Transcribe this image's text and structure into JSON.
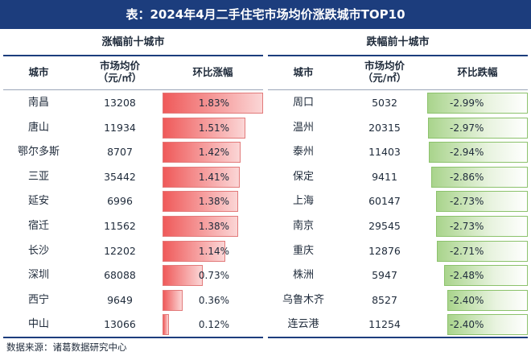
{
  "title": "表：2024年4月二手住宅市场均价涨跌城市TOP10",
  "left": {
    "section_title": "涨幅前十城市",
    "headers": {
      "city": "城市",
      "price": "市场均价\n（元/㎡）",
      "change": "环比涨幅"
    },
    "rows": [
      {
        "city": "南昌",
        "price": "13208",
        "change": "1.83%",
        "value": 1.83
      },
      {
        "city": "唐山",
        "price": "11934",
        "change": "1.51%",
        "value": 1.51
      },
      {
        "city": "鄂尔多斯",
        "price": "8707",
        "change": "1.42%",
        "value": 1.42
      },
      {
        "city": "三亚",
        "price": "35442",
        "change": "1.41%",
        "value": 1.41
      },
      {
        "city": "延安",
        "price": "6996",
        "change": "1.38%",
        "value": 1.38
      },
      {
        "city": "宿迁",
        "price": "11562",
        "change": "1.38%",
        "value": 1.38
      },
      {
        "city": "长沙",
        "price": "12202",
        "change": "1.14%",
        "value": 1.14
      },
      {
        "city": "深圳",
        "price": "68088",
        "change": "0.73%",
        "value": 0.73
      },
      {
        "city": "西宁",
        "price": "9649",
        "change": "0.36%",
        "value": 0.36
      },
      {
        "city": "中山",
        "price": "13066",
        "change": "0.12%",
        "value": 0.12
      }
    ]
  },
  "right": {
    "section_title": "跌幅前十城市",
    "headers": {
      "city": "城市",
      "price": "市场均价\n（元/㎡）",
      "change": "环比跌幅"
    },
    "rows": [
      {
        "city": "周口",
        "price": "5032",
        "change": "-2.99%",
        "value": -2.99
      },
      {
        "city": "温州",
        "price": "20315",
        "change": "-2.97%",
        "value": -2.97
      },
      {
        "city": "泰州",
        "price": "11403",
        "change": "-2.94%",
        "value": -2.94
      },
      {
        "city": "保定",
        "price": "9411",
        "change": "-2.86%",
        "value": -2.86
      },
      {
        "city": "上海",
        "price": "60147",
        "change": "-2.73%",
        "value": -2.73
      },
      {
        "city": "南京",
        "price": "29545",
        "change": "-2.73%",
        "value": -2.73
      },
      {
        "city": "重庆",
        "price": "12876",
        "change": "-2.71%",
        "value": -2.71
      },
      {
        "city": "株洲",
        "price": "5947",
        "change": "-2.48%",
        "value": -2.48
      },
      {
        "city": "乌鲁木齐",
        "price": "8527",
        "change": "-2.40%",
        "value": -2.4
      },
      {
        "city": "连云港",
        "price": "11254",
        "change": "-2.40%",
        "value": -2.4
      }
    ]
  },
  "source": "数据来源：诸葛数据研究中心",
  "colors": {
    "header_bg": "#1c3d7d",
    "rise": "#ef5a5a",
    "fall": "#a9d48c"
  }
}
